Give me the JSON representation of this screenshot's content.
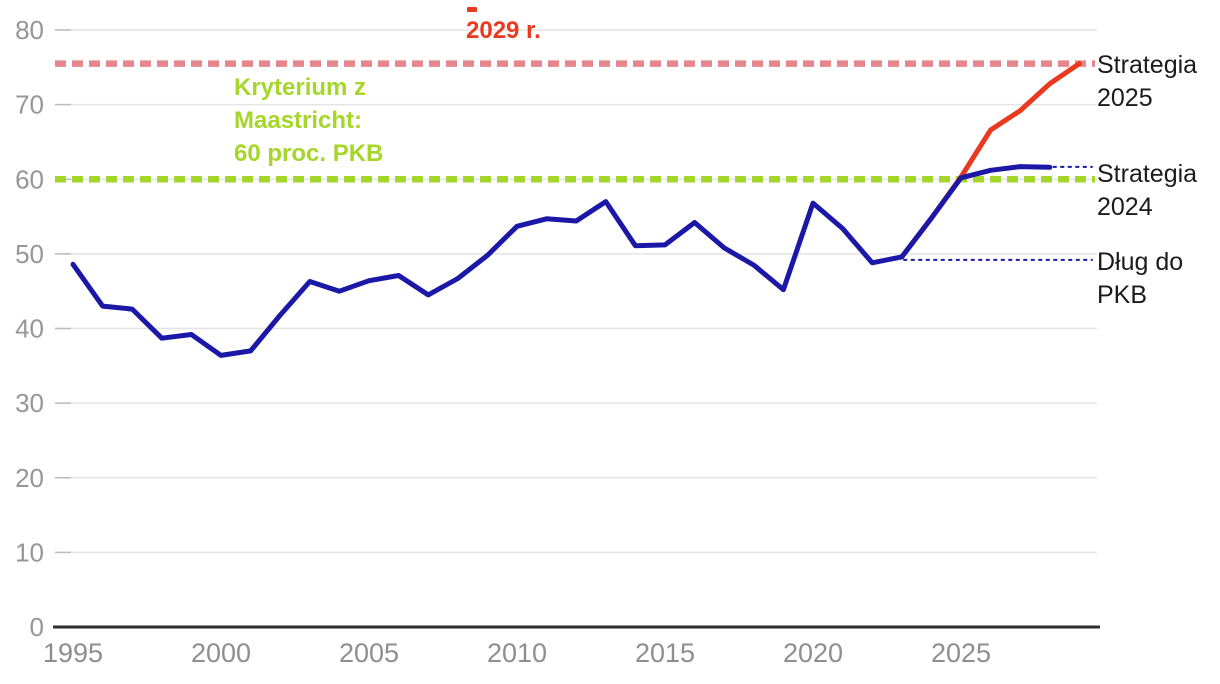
{
  "colors": {
    "navy": "#1b18a8",
    "red": "#e93a20",
    "green": "#a5d629",
    "pink": "#e5868e",
    "text_dark": "#1b1b1b",
    "axis_label": "#969696",
    "x_label": "#8e8e8e",
    "gridline": "#e4e4e4",
    "tick": "#bcbcbc",
    "axis": "#2e2e2e"
  },
  "annotations": {
    "year_2029": "2029 r.",
    "maastricht": "Kryterium z\nMaastricht:\n60 proc. PKB",
    "strategia_2025": "Strategia\n2025",
    "strategia_2024": "Strategia\n2024",
    "dlug_do_pkb": "Dług do\nPKB"
  },
  "chart_data": {
    "type": "line",
    "title": "",
    "xlabel": "",
    "ylabel": "",
    "x_range": [
      1995,
      2029.5
    ],
    "y_range": [
      0,
      84
    ],
    "x_ticks": [
      1995,
      2000,
      2005,
      2010,
      2015,
      2020,
      2025
    ],
    "y_ticks": [
      0,
      10,
      20,
      30,
      40,
      50,
      60,
      70,
      80
    ],
    "grid": true,
    "legend_position": "right-labels",
    "series": [
      {
        "name": "Strategia 2025",
        "color_key": "red",
        "x": [
          2023,
          2024,
          2025,
          2026,
          2027,
          2028,
          2029
        ],
        "values": [
          49.6,
          54.8,
          60.3,
          66.6,
          69.2,
          72.8,
          75.5
        ]
      },
      {
        "name": "Strategia 2024",
        "color_key": "navy",
        "x": [
          2023,
          2024,
          2025,
          2026,
          2027,
          2028
        ],
        "values": [
          49.6,
          54.8,
          60.2,
          61.2,
          61.7,
          61.6
        ]
      },
      {
        "name": "Dług do PKB",
        "color_key": "navy",
        "x": [
          1995,
          1996,
          1997,
          1998,
          1999,
          2000,
          2001,
          2002,
          2003,
          2004,
          2005,
          2006,
          2007,
          2008,
          2009,
          2010,
          2011,
          2012,
          2013,
          2014,
          2015,
          2016,
          2017,
          2018,
          2019,
          2020,
          2021,
          2022,
          2023
        ],
        "values": [
          48.6,
          43.0,
          42.6,
          38.7,
          39.2,
          36.4,
          37.0,
          41.8,
          46.3,
          45.0,
          46.4,
          47.1,
          44.5,
          46.7,
          49.8,
          53.7,
          54.7,
          54.4,
          57.0,
          51.1,
          51.2,
          54.2,
          50.8,
          48.5,
          45.2,
          56.8,
          53.4,
          48.8,
          49.6
        ]
      }
    ],
    "reference_lines": [
      {
        "label": "Kryterium z Maastricht: 60 proc. PKB",
        "value": 60,
        "color_key": "green"
      },
      {
        "label": "2029 r.",
        "value": 75.5,
        "color_key": "pink"
      }
    ],
    "leader_lines": [
      {
        "x1": 2023.05,
        "x2": 2029.45,
        "value": 49.2
      },
      {
        "x1": 2028.1,
        "x2": 2029.45,
        "value": 61.65
      }
    ]
  }
}
